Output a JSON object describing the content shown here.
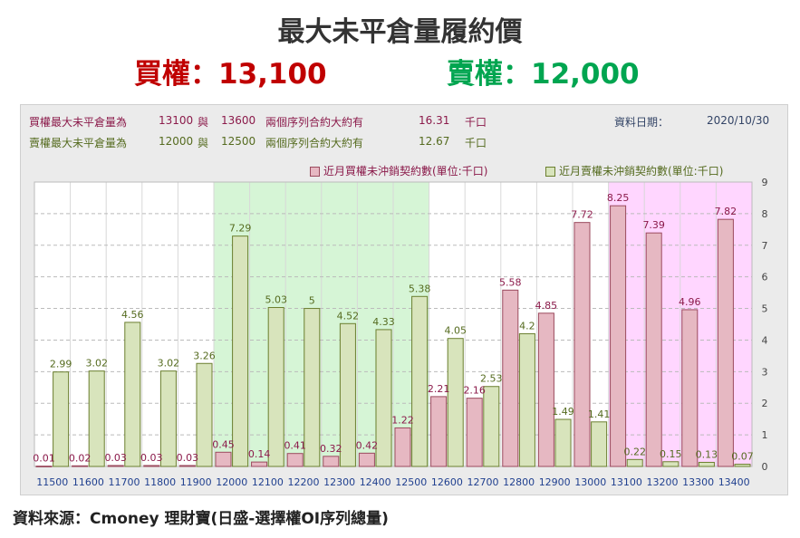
{
  "header": {
    "title": "最大未平倉量履約價",
    "call_summary": "買權：13,100",
    "put_summary": "賣權：12,000"
  },
  "info": {
    "call_row": {
      "label": "買權最大未平倉量為",
      "strike_low": "13100",
      "connector": "與",
      "strike_high": "13600",
      "desc": "兩個序列合約大約有",
      "amount": "16.31",
      "unit": "千口"
    },
    "put_row": {
      "label": "賣權最大未平倉量為",
      "strike_low": "12000",
      "connector": "與",
      "strike_high": "12500",
      "desc": "兩個序列合約大約有",
      "amount": "12.67",
      "unit": "千口"
    },
    "date_label": "資料日期：",
    "date_value": "2020/10/30"
  },
  "legend": {
    "call": "近月買權未沖銷契約數(單位:千口)",
    "put": "近月賣權未沖銷契約數(單位:千口)"
  },
  "footer": "資料來源：Cmoney 理財寶(日盛-選擇權OI序列總量)",
  "colors": {
    "call_fill": "#e6b8c2",
    "call_stroke": "#9b4a5e",
    "put_fill": "#d8e4bc",
    "put_stroke": "#6b7f2f",
    "green_zone": "#d6f5d6",
    "pink_zone": "#ffd6ff",
    "call_label": "#8b1a4a",
    "put_label": "#556b1f"
  },
  "chart_data": {
    "type": "bar",
    "categories": [
      "11500",
      "11600",
      "11700",
      "11800",
      "11900",
      "12000",
      "12100",
      "12200",
      "12300",
      "12400",
      "12500",
      "12600",
      "12700",
      "12800",
      "12900",
      "13000",
      "13100",
      "13200",
      "13300",
      "13400"
    ],
    "series": [
      {
        "name": "近月買權未沖銷契約數(單位:千口)",
        "values": [
          0.01,
          0.02,
          0.03,
          0.03,
          0.03,
          0.45,
          0.14,
          0.41,
          0.32,
          0.42,
          1.22,
          2.21,
          2.16,
          5.58,
          4.85,
          7.72,
          8.25,
          7.39,
          4.96,
          7.82
        ]
      },
      {
        "name": "近月賣權未沖銷契約數(單位:千口)",
        "values": [
          2.99,
          3.02,
          4.56,
          3.02,
          3.26,
          7.29,
          5.03,
          5,
          4.52,
          4.33,
          5.38,
          4.05,
          2.53,
          4.2,
          1.49,
          1.41,
          0.22,
          0.15,
          0.13,
          0.07
        ]
      }
    ],
    "call_labels": [
      "0.01",
      "0.02",
      "0.03",
      "0.03",
      "0.03",
      "0.45",
      "0.14",
      "0.41",
      "0.32",
      "0.42",
      "1.22",
      "2.21",
      "2.16",
      "5.58",
      "4.85",
      "7.72",
      "8.25",
      "7.39",
      "4.96",
      "7.82"
    ],
    "put_labels": [
      "2.99",
      "3.02",
      "4.56",
      "3.02",
      "3.26",
      "7.29",
      "5.03",
      "5",
      "4.52",
      "4.33",
      "5.38",
      "4.05",
      "2.53",
      "4.2",
      "1.49",
      "1.41",
      "0.22",
      "0.15",
      "0.13",
      "0.07"
    ],
    "y_ticks": [
      "0",
      "1",
      "2",
      "3",
      "4",
      "5",
      "6",
      "7",
      "8",
      "9"
    ],
    "ylim": [
      0,
      9
    ],
    "y_axis_side": "right",
    "highlight_ranges": [
      {
        "from": "12000",
        "to": "12500",
        "color": "green"
      },
      {
        "from": "13100",
        "to": "13400",
        "color": "pink"
      }
    ]
  }
}
